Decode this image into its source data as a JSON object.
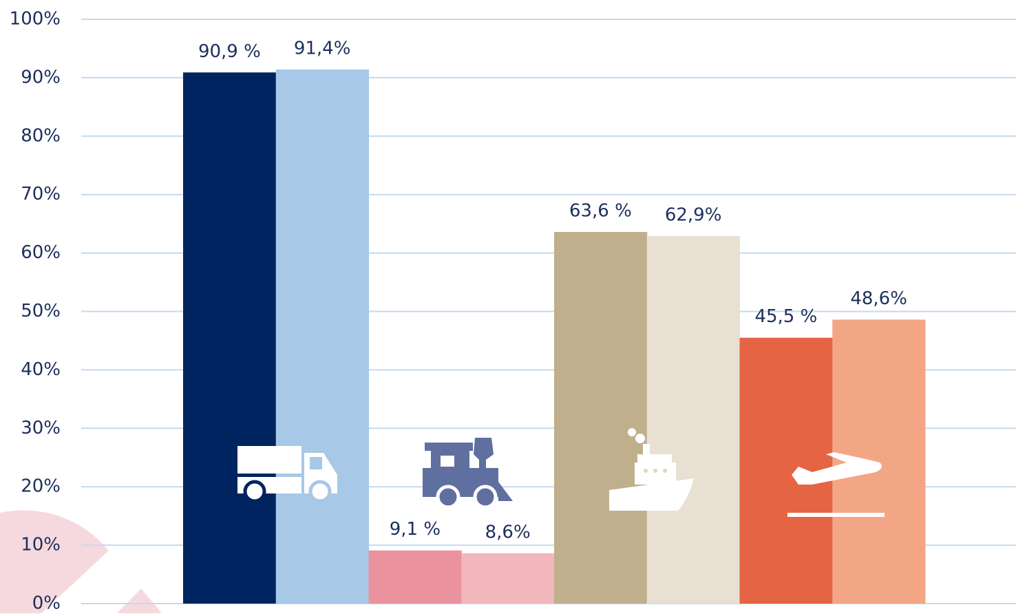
{
  "chart_data": {
    "type": "bar",
    "categories": [
      null,
      null,
      null,
      null,
      null,
      null,
      null,
      null
    ],
    "values": [
      90.9,
      91.4,
      9.1,
      8.6,
      63.6,
      62.9,
      45.5,
      48.6
    ],
    "value_labels": [
      "90,9 %",
      "91,4%",
      "9,1 %",
      "8,6%",
      "63,6 %",
      "62,9%",
      "45,5 %",
      "48,6%"
    ],
    "colors": [
      "#00245f",
      "#a7c8e6",
      "#ea939e",
      "#f2b6bd",
      "#c0af8c",
      "#e8e0d3",
      "#e56443",
      "#f3a685"
    ],
    "ylim": [
      0,
      100
    ],
    "yticks": [
      {
        "value": 0,
        "label": "0%"
      },
      {
        "value": 10,
        "label": "10%"
      },
      {
        "value": 20,
        "label": "20%"
      },
      {
        "value": 30,
        "label": "30%"
      },
      {
        "value": 40,
        "label": "40%"
      },
      {
        "value": 50,
        "label": "50%"
      },
      {
        "value": 60,
        "label": "60%"
      },
      {
        "value": 70,
        "label": "70%"
      },
      {
        "value": 80,
        "label": "80%"
      },
      {
        "value": 90,
        "label": "90%"
      },
      {
        "value": 100,
        "label": "100%"
      }
    ],
    "grid": true
  }
}
